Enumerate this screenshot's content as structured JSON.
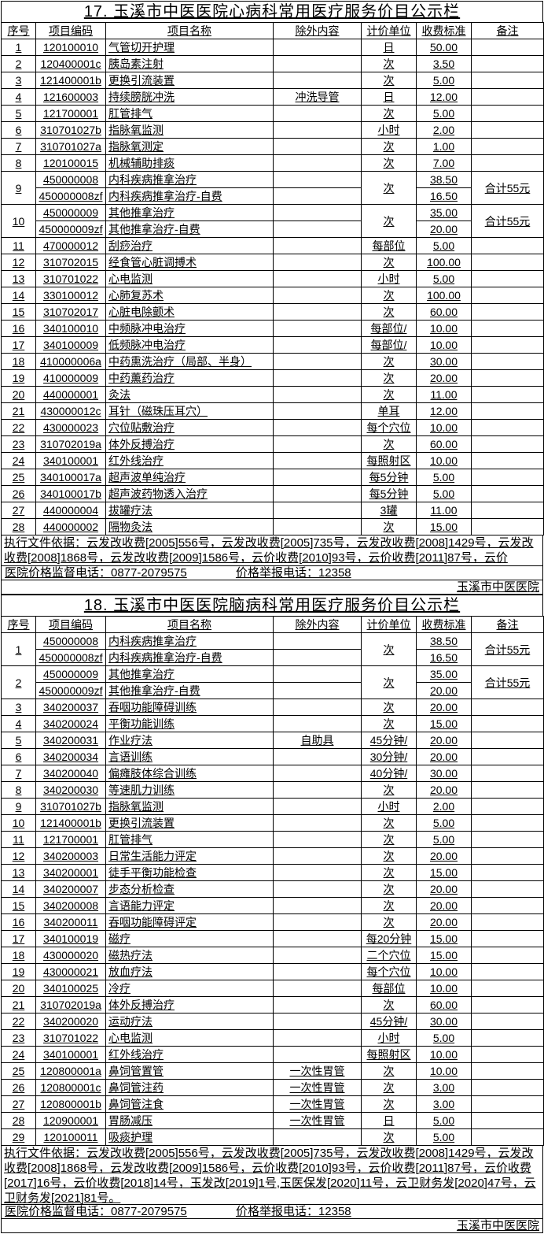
{
  "colors": {
    "paper": "#ffffff",
    "ink": "#000000",
    "grid": "#000000"
  },
  "tables": [
    {
      "title": "17. 玉溪市中医医院心病科常用医疗服务价目公示栏",
      "headers": [
        "序号",
        "项目编码",
        "项目名称",
        "除外内容",
        "计价单位",
        "收费标准",
        "备注"
      ],
      "rows": [
        {
          "no": "1",
          "unit": "日",
          "note": "",
          "items": [
            {
              "code": "120100010",
              "name": "气管切开护理",
              "exclude": "",
              "price": "50.00"
            }
          ]
        },
        {
          "no": "2",
          "unit": "次",
          "note": "",
          "items": [
            {
              "code": "120400001c",
              "name": "胰岛素注射",
              "exclude": "",
              "price": "3.50"
            }
          ]
        },
        {
          "no": "3",
          "unit": "次",
          "note": "",
          "items": [
            {
              "code": "121400001b",
              "name": "更换引流装置",
              "exclude": "",
              "price": "5.00"
            }
          ]
        },
        {
          "no": "4",
          "unit": "日",
          "note": "",
          "items": [
            {
              "code": "121600003",
              "name": "持续膀胱冲洗",
              "exclude": "冲洗导管",
              "price": "12.00"
            }
          ]
        },
        {
          "no": "5",
          "unit": "次",
          "note": "",
          "items": [
            {
              "code": "121700001",
              "name": "肛管排气",
              "exclude": "",
              "price": "5.00"
            }
          ]
        },
        {
          "no": "6",
          "unit": "小时",
          "note": "",
          "items": [
            {
              "code": "310701027b",
              "name": "指脉氧监测",
              "exclude": "",
              "price": "2.00"
            }
          ]
        },
        {
          "no": "7",
          "unit": "次",
          "note": "",
          "items": [
            {
              "code": "310701027a",
              "name": "指脉氧测定",
              "exclude": "",
              "price": "1.00"
            }
          ]
        },
        {
          "no": "8",
          "unit": "次",
          "note": "",
          "items": [
            {
              "code": "120100015",
              "name": "机械辅助排痰",
              "exclude": "",
              "price": "7.00"
            }
          ]
        },
        {
          "no": "9",
          "unit": "次",
          "note": "合计55元",
          "items": [
            {
              "code": "450000008",
              "name": "内科疾病推拿治疗",
              "exclude": "",
              "price": "38.50"
            },
            {
              "code": "450000008zf",
              "name": "内科疾病推拿治疗-自费",
              "exclude": "",
              "price": "16.50"
            }
          ]
        },
        {
          "no": "10",
          "unit": "次",
          "note": "合计55元",
          "items": [
            {
              "code": "450000009",
              "name": "其他推拿治疗",
              "exclude": "",
              "price": "35.00"
            },
            {
              "code": "450000009zf",
              "name": "其他推拿治疗-自费",
              "exclude": "",
              "price": "20.00"
            }
          ]
        },
        {
          "no": "11",
          "unit": "每部位",
          "note": "",
          "items": [
            {
              "code": "470000012",
              "name": "刮痧治疗",
              "exclude": "",
              "price": "5.00"
            }
          ]
        },
        {
          "no": "12",
          "unit": "次",
          "note": "",
          "items": [
            {
              "code": "310702015",
              "name": "经食管心脏调搏术",
              "exclude": "",
              "price": "100.00"
            }
          ]
        },
        {
          "no": "13",
          "unit": "小时",
          "note": "",
          "items": [
            {
              "code": "310701022",
              "name": "心电监测",
              "exclude": "",
              "price": "5.00"
            }
          ]
        },
        {
          "no": "14",
          "unit": "次",
          "note": "",
          "items": [
            {
              "code": "330100012",
              "name": "心肺复苏术",
              "exclude": "",
              "price": "100.00"
            }
          ]
        },
        {
          "no": "15",
          "unit": "次",
          "note": "",
          "items": [
            {
              "code": "310702017",
              "name": "心脏电除颤术",
              "exclude": "",
              "price": "60.00"
            }
          ]
        },
        {
          "no": "16",
          "unit": "每部位/",
          "note": "",
          "items": [
            {
              "code": "340100010",
              "name": "中频脉冲电治疗",
              "exclude": "",
              "price": "10.00"
            }
          ]
        },
        {
          "no": "17",
          "unit": "每部位/",
          "note": "",
          "items": [
            {
              "code": "340100009",
              "name": "低频脉冲电治疗",
              "exclude": "",
              "price": "10.00"
            }
          ]
        },
        {
          "no": "18",
          "unit": "次",
          "note": "",
          "items": [
            {
              "code": "410000006a",
              "name": "中药熏洗治疗（局部、半身）",
              "exclude": "",
              "price": "30.00"
            }
          ]
        },
        {
          "no": "19",
          "unit": "次",
          "note": "",
          "items": [
            {
              "code": "410000009",
              "name": "中药薰药治疗",
              "exclude": "",
              "price": "20.00"
            }
          ]
        },
        {
          "no": "20",
          "unit": "次",
          "note": "",
          "items": [
            {
              "code": "440000001",
              "name": "灸法",
              "exclude": "",
              "price": "11.00"
            }
          ]
        },
        {
          "no": "21",
          "unit": "单耳",
          "note": "",
          "items": [
            {
              "code": "430000012c",
              "name": "耳针（磁珠压耳穴）",
              "exclude": "",
              "price": "12.00"
            }
          ]
        },
        {
          "no": "22",
          "unit": "每个穴位",
          "note": "",
          "items": [
            {
              "code": "430000023",
              "name": "穴位贴敷治疗",
              "exclude": "",
              "price": "10.00"
            }
          ]
        },
        {
          "no": "23",
          "unit": "次",
          "note": "",
          "items": [
            {
              "code": "310702019a",
              "name": "体外反搏治疗",
              "exclude": "",
              "price": "60.00"
            }
          ]
        },
        {
          "no": "24",
          "unit": "每照射区",
          "note": "",
          "items": [
            {
              "code": "340100001",
              "name": "红外线治疗",
              "exclude": "",
              "price": "10.00"
            }
          ]
        },
        {
          "no": "25",
          "unit": "每5分钟",
          "note": "",
          "items": [
            {
              "code": "340100017a",
              "name": "超声波单纯治疗",
              "exclude": "",
              "price": "5.00"
            }
          ]
        },
        {
          "no": "26",
          "unit": "每5分钟",
          "note": "",
          "items": [
            {
              "code": "340100017b",
              "name": "超声波药物透入治疗",
              "exclude": "",
              "price": "5.00"
            }
          ]
        },
        {
          "no": "27",
          "unit": "3罐",
          "note": "",
          "items": [
            {
              "code": "440000004",
              "name": "拔罐疗法",
              "exclude": "",
              "price": "11.00"
            }
          ]
        },
        {
          "no": "28",
          "unit": "次",
          "note": "",
          "items": [
            {
              "code": "440000002",
              "name": "隔物灸法",
              "exclude": "",
              "price": "15.00"
            }
          ]
        }
      ],
      "footer_basis": "执行文件依据：云发改收费[2005]556号，云发改收费[2005]735号，云发改收费[2008]1429号，云发改收费[2008]1868号，云发改收费[2009]1586号，云价收费[2010]93号，云价收费[2011]87号，云价",
      "footer_supervision": "医院价格监督电话：0877-2079575",
      "footer_report": "价格举报电话：12358",
      "footer_hospital": "玉溪市中医医院"
    },
    {
      "title": "18. 玉溪市中医医院脑病科常用医疗服务价目公示栏",
      "headers": [
        "序号",
        "项目编码",
        "项目名称",
        "除外内容",
        "计价单位",
        "收费标准",
        "备注"
      ],
      "rows": [
        {
          "no": "1",
          "unit": "次",
          "note": "合计55元",
          "items": [
            {
              "code": "450000008",
              "name": "内科疾病推拿治疗",
              "exclude": "",
              "price": "38.50"
            },
            {
              "code": "450000008zf",
              "name": "内科疾病推拿治疗-自费",
              "exclude": "",
              "price": "16.50"
            }
          ]
        },
        {
          "no": "2",
          "unit": "次",
          "note": "合计55元",
          "items": [
            {
              "code": "450000009",
              "name": "其他推拿治疗",
              "exclude": "",
              "price": "35.00"
            },
            {
              "code": "450000009zf",
              "name": "其他推拿治疗-自费",
              "exclude": "",
              "price": "20.00"
            }
          ]
        },
        {
          "no": "3",
          "unit": "次",
          "note": "",
          "items": [
            {
              "code": "340200037",
              "name": "吞咽功能障碍训练",
              "exclude": "",
              "price": "20.00"
            }
          ]
        },
        {
          "no": "4",
          "unit": "次",
          "note": "",
          "items": [
            {
              "code": "340200024",
              "name": "平衡功能训练",
              "exclude": "",
              "price": "15.00"
            }
          ]
        },
        {
          "no": "5",
          "unit": "45分钟/",
          "note": "",
          "items": [
            {
              "code": "340200031",
              "name": "作业疗法",
              "exclude": "自助具",
              "price": "20.00"
            }
          ]
        },
        {
          "no": "6",
          "unit": "30分钟/",
          "note": "",
          "items": [
            {
              "code": "340200034",
              "name": "言语训练",
              "exclude": "",
              "price": "20.00"
            }
          ]
        },
        {
          "no": "7",
          "unit": "40分钟/",
          "note": "",
          "items": [
            {
              "code": "340200040",
              "name": "偏瘫肢体综合训练",
              "exclude": "",
              "price": "30.00"
            }
          ]
        },
        {
          "no": "8",
          "unit": "次",
          "note": "",
          "items": [
            {
              "code": "340200030",
              "name": "等速肌力训练",
              "exclude": "",
              "price": "20.00"
            }
          ]
        },
        {
          "no": "9",
          "unit": "小时",
          "note": "",
          "items": [
            {
              "code": "310701027b",
              "name": "指脉氧监测",
              "exclude": "",
              "price": "2.00"
            }
          ]
        },
        {
          "no": "10",
          "unit": "次",
          "note": "",
          "items": [
            {
              "code": "121400001b",
              "name": "更换引流装置",
              "exclude": "",
              "price": "5.00"
            }
          ]
        },
        {
          "no": "11",
          "unit": "次",
          "note": "",
          "items": [
            {
              "code": "121700001",
              "name": "肛管排气",
              "exclude": "",
              "price": "5.00"
            }
          ]
        },
        {
          "no": "12",
          "unit": "次",
          "note": "",
          "items": [
            {
              "code": "340200003",
              "name": "日常生活能力评定",
              "exclude": "",
              "price": "20.00"
            }
          ]
        },
        {
          "no": "13",
          "unit": "次",
          "note": "",
          "items": [
            {
              "code": "340200001",
              "name": "徒手平衡功能检查",
              "exclude": "",
              "price": "15.00"
            }
          ]
        },
        {
          "no": "14",
          "unit": "次",
          "note": "",
          "items": [
            {
              "code": "340200007",
              "name": "步态分析检查",
              "exclude": "",
              "price": "20.00"
            }
          ]
        },
        {
          "no": "15",
          "unit": "次",
          "note": "",
          "items": [
            {
              "code": "340200008",
              "name": "言语能力评定",
              "exclude": "",
              "price": "20.00"
            }
          ]
        },
        {
          "no": "16",
          "unit": "次",
          "note": "",
          "items": [
            {
              "code": "340200011",
              "name": "吞咽功能障碍评定",
              "exclude": "",
              "price": "20.00"
            }
          ]
        },
        {
          "no": "17",
          "unit": "每20分钟",
          "note": "",
          "items": [
            {
              "code": "340100019",
              "name": "磁疗",
              "exclude": "",
              "price": "15.00"
            }
          ]
        },
        {
          "no": "18",
          "unit": "二个穴位",
          "note": "",
          "items": [
            {
              "code": "430000020",
              "name": "磁热疗法",
              "exclude": "",
              "price": "15.00"
            }
          ]
        },
        {
          "no": "19",
          "unit": "每个穴位",
          "note": "",
          "items": [
            {
              "code": "430000021",
              "name": "放血疗法",
              "exclude": "",
              "price": "10.00"
            }
          ]
        },
        {
          "no": "20",
          "unit": "每部位",
          "note": "",
          "items": [
            {
              "code": "340100025",
              "name": "冷疗",
              "exclude": "",
              "price": "10.00"
            }
          ]
        },
        {
          "no": "21",
          "unit": "次",
          "note": "",
          "items": [
            {
              "code": "310702019a",
              "name": "体外反搏治疗",
              "exclude": "",
              "price": "60.00"
            }
          ]
        },
        {
          "no": "22",
          "unit": "45分钟/",
          "note": "",
          "items": [
            {
              "code": "340200020",
              "name": "运动疗法",
              "exclude": "",
              "price": "30.00"
            }
          ]
        },
        {
          "no": "23",
          "unit": "小时",
          "note": "",
          "items": [
            {
              "code": "310701022",
              "name": "心电监测",
              "exclude": "",
              "price": "5.00"
            }
          ]
        },
        {
          "no": "24",
          "unit": "每照射区",
          "note": "",
          "items": [
            {
              "code": "340100001",
              "name": "红外线治疗",
              "exclude": "",
              "price": "10.00"
            }
          ]
        },
        {
          "no": "25",
          "unit": "次",
          "note": "",
          "items": [
            {
              "code": "120800001a",
              "name": "鼻饲管置管",
              "exclude": "一次性胃管",
              "price": "10.00"
            }
          ]
        },
        {
          "no": "26",
          "unit": "次",
          "note": "",
          "items": [
            {
              "code": "120800001c",
              "name": "鼻饲管注药",
              "exclude": "一次性胃管",
              "price": "3.00"
            }
          ]
        },
        {
          "no": "27",
          "unit": "次",
          "note": "",
          "items": [
            {
              "code": "120800001b",
              "name": "鼻饲管注食",
              "exclude": "一次性胃管",
              "price": "3.00"
            }
          ]
        },
        {
          "no": "28",
          "unit": "日",
          "note": "",
          "items": [
            {
              "code": "120900001",
              "name": "胃肠减压",
              "exclude": "一次性胃管",
              "price": "5.00"
            }
          ]
        },
        {
          "no": "29",
          "unit": "次",
          "note": "",
          "items": [
            {
              "code": "120100011",
              "name": "吸痰护理",
              "exclude": "",
              "price": "5.00"
            }
          ]
        }
      ],
      "footer_basis": "执行文件依据：云发改收费[2005]556号，云发改收费[2005]735号，云发改收费[2008]1429号，云发改收费[2008]1868号，云发改收费[2009]1586号，云价收费[2010]93号，云价收费[2011]87号，云价收费[2017]16号，云价收费[2018]14号，玉发改[2019]1号,玉医保发[2020]11号，云卫财务发[2020]47号，云卫财务发[2021]81号。",
      "footer_supervision": "医院价格监督电话：0877-2079575",
      "footer_report": "价格举报电话：12358",
      "footer_hospital": "玉溪市中医医院"
    }
  ]
}
